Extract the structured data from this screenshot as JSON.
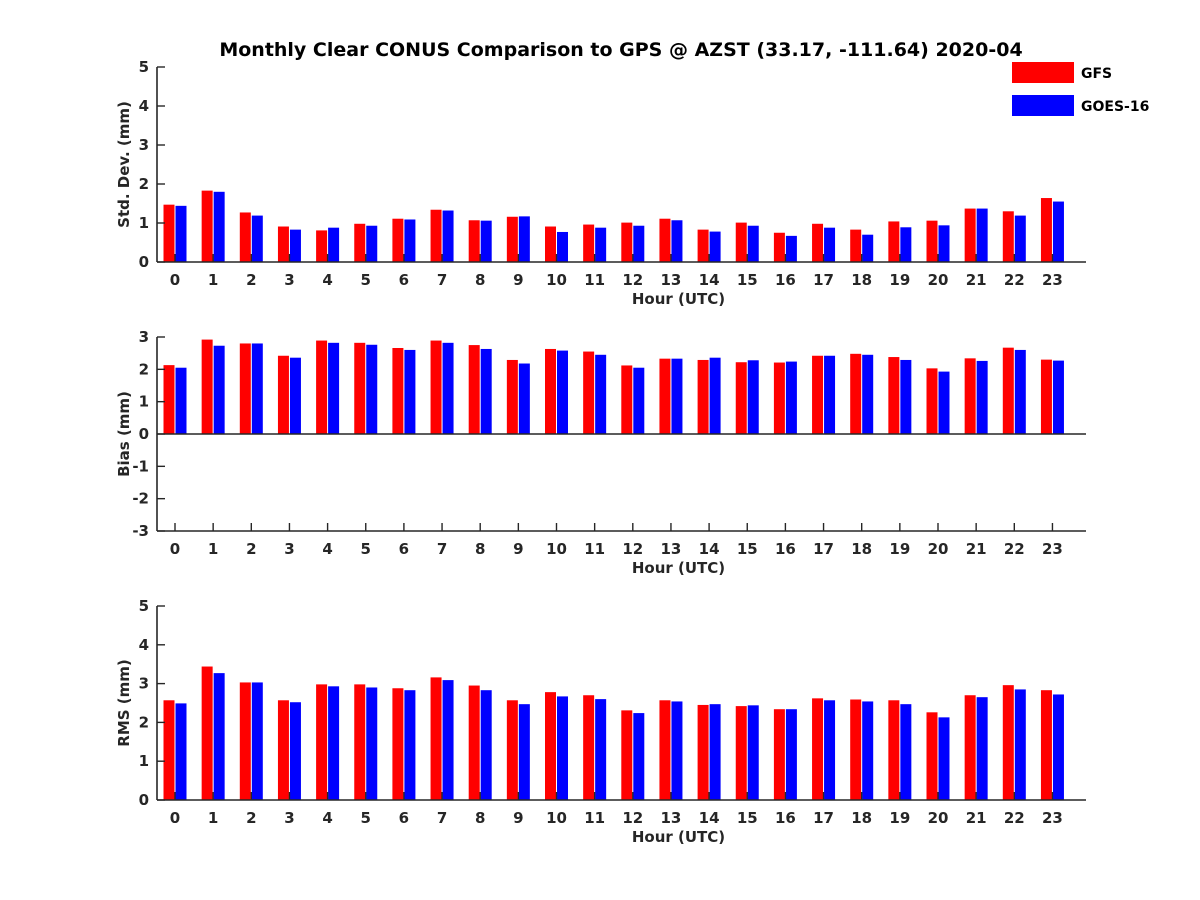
{
  "chart_data": {
    "type": "bar",
    "title": "Monthly Clear CONUS Comparison to GPS @ AZST (33.17, -111.64) 2020-04",
    "categories": [
      "0",
      "1",
      "2",
      "3",
      "4",
      "5",
      "6",
      "7",
      "8",
      "9",
      "10",
      "11",
      "12",
      "13",
      "14",
      "15",
      "16",
      "17",
      "18",
      "19",
      "20",
      "21",
      "22",
      "23"
    ],
    "legend": {
      "placement": "top-right",
      "entries": [
        {
          "name": "GFS",
          "color": "#ff0000"
        },
        {
          "name": "GOES-16",
          "color": "#0000ff"
        }
      ]
    },
    "panels": [
      {
        "ylabel": "Std. Dev. (mm)",
        "xlabel": "Hour (UTC)",
        "ylim": [
          0,
          5
        ],
        "yticks": [
          "0",
          "1",
          "2",
          "3",
          "4",
          "5"
        ],
        "series": [
          {
            "name": "GFS",
            "color": "#ff0000",
            "values": [
              1.47,
              1.83,
              1.27,
              0.91,
              0.81,
              0.98,
              1.11,
              1.34,
              1.07,
              1.16,
              0.91,
              0.96,
              1.01,
              1.11,
              0.83,
              1.01,
              0.75,
              0.98,
              0.83,
              1.04,
              1.06,
              1.37,
              1.3,
              1.64
            ]
          },
          {
            "name": "GOES-16",
            "color": "#0000ff",
            "values": [
              1.44,
              1.8,
              1.19,
              0.83,
              0.88,
              0.93,
              1.09,
              1.32,
              1.06,
              1.17,
              0.77,
              0.88,
              0.93,
              1.07,
              0.78,
              0.93,
              0.67,
              0.88,
              0.7,
              0.89,
              0.94,
              1.37,
              1.19,
              1.55
            ]
          }
        ]
      },
      {
        "ylabel": "Bias (mm)",
        "xlabel": "Hour (UTC)",
        "ylim": [
          -3,
          3
        ],
        "yticks": [
          "-3",
          "-2",
          "-1",
          "0",
          "1",
          "2",
          "3"
        ],
        "series": [
          {
            "name": "GFS",
            "color": "#ff0000",
            "values": [
              2.13,
              2.92,
              2.8,
              2.42,
              2.89,
              2.82,
              2.66,
              2.89,
              2.75,
              2.29,
              2.63,
              2.55,
              2.12,
              2.33,
              2.29,
              2.22,
              2.21,
              2.42,
              2.48,
              2.38,
              2.03,
              2.34,
              2.67,
              2.3
            ]
          },
          {
            "name": "GOES-16",
            "color": "#0000ff",
            "values": [
              2.05,
              2.73,
              2.8,
              2.36,
              2.82,
              2.76,
              2.6,
              2.82,
              2.63,
              2.18,
              2.58,
              2.45,
              2.05,
              2.33,
              2.36,
              2.28,
              2.24,
              2.42,
              2.45,
              2.29,
              1.93,
              2.26,
              2.6,
              2.27
            ]
          }
        ]
      },
      {
        "ylabel": "RMS (mm)",
        "xlabel": "Hour (UTC)",
        "ylim": [
          0,
          5
        ],
        "yticks": [
          "0",
          "1",
          "2",
          "3",
          "4",
          "5"
        ],
        "series": [
          {
            "name": "GFS",
            "color": "#ff0000",
            "values": [
              2.57,
              3.44,
              3.03,
              2.57,
              2.98,
              2.98,
              2.88,
              3.16,
              2.95,
              2.57,
              2.78,
              2.7,
              2.31,
              2.57,
              2.45,
              2.42,
              2.34,
              2.62,
              2.59,
              2.57,
              2.26,
              2.7,
              2.96,
              2.83
            ]
          },
          {
            "name": "GOES-16",
            "color": "#0000ff",
            "values": [
              2.49,
              3.27,
              3.03,
              2.52,
              2.93,
              2.9,
              2.83,
              3.09,
              2.83,
              2.47,
              2.67,
              2.6,
              2.24,
              2.54,
              2.47,
              2.44,
              2.34,
              2.57,
              2.54,
              2.47,
              2.13,
              2.65,
              2.85,
              2.72
            ]
          }
        ]
      }
    ]
  }
}
